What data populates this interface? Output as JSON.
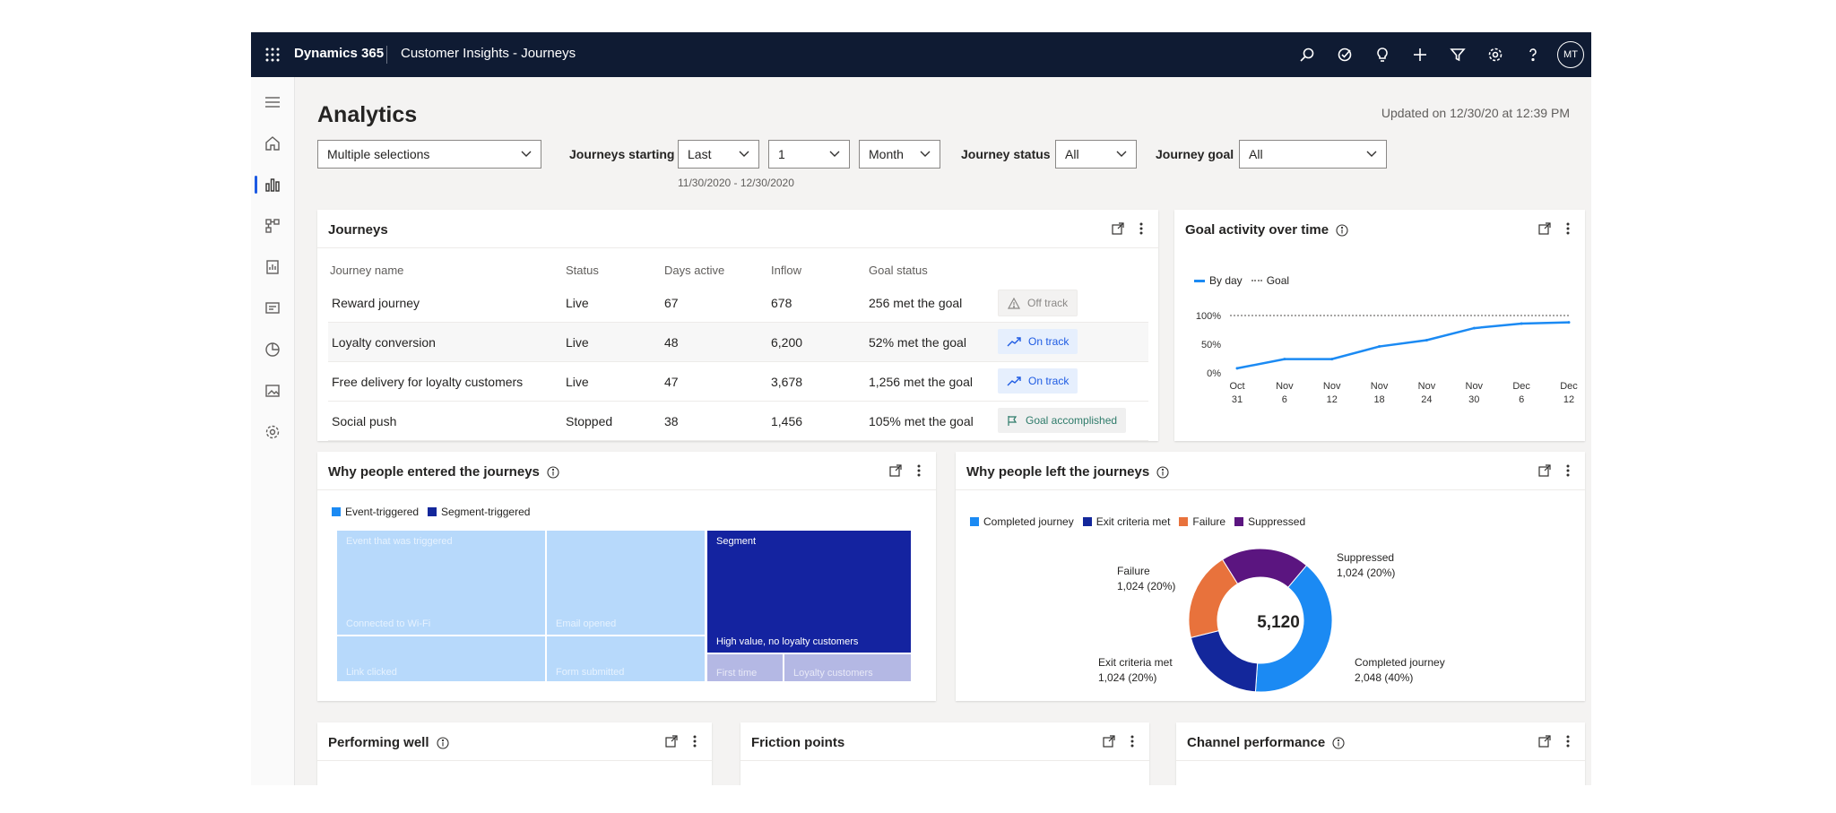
{
  "topbar": {
    "brand": "Dynamics 365",
    "app_name": "Customer Insights - Journeys",
    "icons": [
      "search-icon",
      "task-icon",
      "lightbulb-icon",
      "add-icon",
      "filter-icon",
      "settings-icon",
      "help-icon"
    ],
    "avatar_initials": "MT"
  },
  "leftnav": {
    "items": [
      "menu-icon",
      "home-icon",
      "analytics-icon",
      "journeys-icon",
      "reports-icon",
      "forms-icon",
      "segments-icon",
      "assets-icon",
      "settings-icon"
    ],
    "active_index": 2
  },
  "page": {
    "title": "Analytics",
    "updated": "Updated on 12/30/20 at 12:39 PM"
  },
  "filters": {
    "selection": "Multiple selections",
    "journeys_starting_label": "Journeys starting",
    "period": "Last",
    "count": "1",
    "unit": "Month",
    "date_range": "11/30/2020 - 12/30/2020",
    "status_label": "Journey status",
    "status": "All",
    "goal_label": "Journey goal",
    "goal": "All"
  },
  "journeys_card": {
    "title": "Journeys",
    "columns": [
      "Journey name",
      "Status",
      "Days active",
      "Inflow",
      "Goal status"
    ],
    "rows": [
      {
        "name": "Reward journey",
        "status": "Live",
        "days": "67",
        "inflow": "678",
        "goal": "256 met the goal",
        "badge": "Off track",
        "badge_type": "off"
      },
      {
        "name": "Loyalty conversion",
        "status": "Live",
        "days": "48",
        "inflow": "6,200",
        "goal": "52% met the goal",
        "badge": "On track",
        "badge_type": "on"
      },
      {
        "name": "Free delivery for loyalty customers",
        "status": "Live",
        "days": "47",
        "inflow": "3,678",
        "goal": "1,256 met the goal",
        "badge": "On track",
        "badge_type": "on"
      },
      {
        "name": "Social push",
        "status": "Stopped",
        "days": "38",
        "inflow": "1,456",
        "goal": "105% met the goal",
        "badge": "Goal accomplished",
        "badge_type": "accomplished"
      }
    ]
  },
  "goal_card": {
    "title": "Goal activity over time",
    "legend": [
      "By day",
      "Goal"
    ]
  },
  "entered_card": {
    "title": "Why people entered the journeys",
    "legend": [
      "Event-triggered",
      "Segment-triggered"
    ],
    "tiles": {
      "t1": "Event that was triggered",
      "t2": "Connected to Wi-Fi",
      "t3": "Email opened",
      "t4": "Link clicked",
      "t5": "Form submitted",
      "t6": "Segment",
      "t7": "High value, no loyalty customers",
      "t8": "First time",
      "t9": "Loyalty customers"
    }
  },
  "left_card": {
    "title": "Why people left the journeys",
    "total": "5,120",
    "labels": {
      "suppressed_name": "Suppressed",
      "suppressed_val": "1,024 (20%)",
      "failure_name": "Failure",
      "failure_val": "1,024 (20%)",
      "exit_name": "Exit criteria met",
      "exit_val": "1,024 (20%)",
      "completed_name": "Completed journey",
      "completed_val": "2,048 (40%)"
    }
  },
  "bottom_cards": {
    "performing": "Performing well",
    "friction": "Friction points",
    "channel": "Channel performance"
  },
  "colors": {
    "nav": "#0f1b33",
    "accent": "#1e5be3",
    "completed": "#1b8af3",
    "exit": "#13279b",
    "failure": "#e8723c",
    "suppressed": "#5b1580",
    "event_tile": "#b7d9fb",
    "segment_tile": "#1423a0",
    "segment_light_tile": "#b4b8e4"
  },
  "chart_data": [
    {
      "type": "line",
      "title": "Goal activity over time",
      "x": [
        "Oct 31",
        "Nov 6",
        "Nov 12",
        "Nov 18",
        "Nov 24",
        "Nov 30",
        "Dec 6",
        "Dec 12"
      ],
      "ytick_labels": [
        "0%",
        "50%",
        "100%"
      ],
      "ylim": [
        0,
        100
      ],
      "series": [
        {
          "name": "By day",
          "values": [
            8,
            24,
            24,
            46,
            57,
            78,
            86,
            88
          ]
        },
        {
          "name": "Goal",
          "values": [
            100,
            100,
            100,
            100,
            100,
            100,
            100,
            100
          ]
        }
      ],
      "legend": "top-left"
    },
    {
      "type": "pie",
      "title": "Why people left the journeys",
      "categories": [
        "Completed journey",
        "Exit criteria met",
        "Failure",
        "Suppressed"
      ],
      "values": [
        2048,
        1024,
        1024,
        1024
      ],
      "legend": "top-left"
    }
  ]
}
